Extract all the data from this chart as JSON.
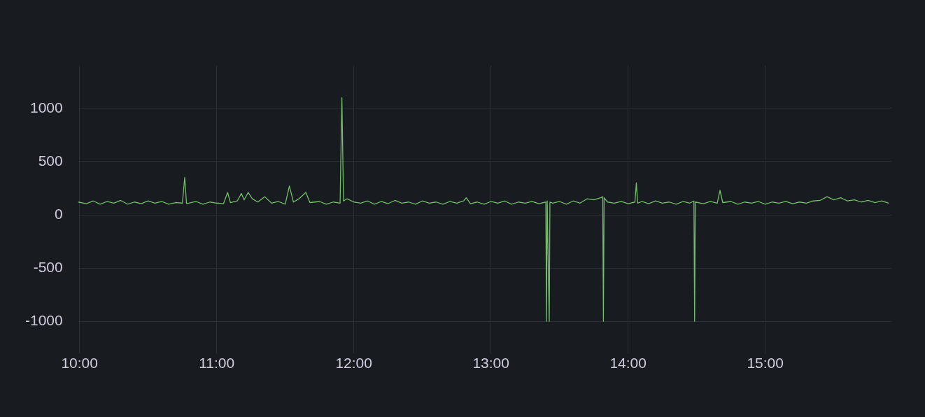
{
  "chart_data": {
    "type": "line",
    "xlim": [
      9.99,
      15.92
    ],
    "ylim": [
      -1300,
      1400
    ],
    "xticks": [
      {
        "value": 10,
        "label": "10:00"
      },
      {
        "value": 11,
        "label": "11:00"
      },
      {
        "value": 12,
        "label": "12:00"
      },
      {
        "value": 13,
        "label": "13:00"
      },
      {
        "value": 14,
        "label": "14:00"
      },
      {
        "value": 15,
        "label": "15:00"
      }
    ],
    "yticks": [
      -1000,
      -500,
      0,
      500,
      1000
    ],
    "grid": true,
    "legend": false,
    "marker": "none",
    "line_style": "solid",
    "series": [
      {
        "color": "#73bf69",
        "x": [
          9.99,
          10.05,
          10.1,
          10.15,
          10.2,
          10.25,
          10.3,
          10.35,
          10.4,
          10.45,
          10.5,
          10.55,
          10.6,
          10.65,
          10.7,
          10.75,
          10.767,
          10.78,
          10.85,
          10.9,
          10.95,
          11.0,
          11.05,
          11.08,
          11.1,
          11.15,
          11.18,
          11.2,
          11.23,
          11.26,
          11.3,
          11.35,
          11.4,
          11.45,
          11.5,
          11.53,
          11.56,
          11.6,
          11.65,
          11.68,
          11.75,
          11.8,
          11.85,
          11.9,
          11.913,
          11.925,
          11.95,
          12.0,
          12.05,
          12.1,
          12.15,
          12.2,
          12.25,
          12.3,
          12.35,
          12.4,
          12.45,
          12.5,
          12.55,
          12.6,
          12.65,
          12.7,
          12.75,
          12.8,
          12.82,
          12.85,
          12.9,
          12.95,
          13.0,
          13.05,
          13.1,
          13.15,
          13.2,
          13.25,
          13.3,
          13.35,
          13.4,
          13.405,
          13.41,
          13.425,
          13.43,
          13.45,
          13.5,
          13.55,
          13.6,
          13.65,
          13.7,
          13.75,
          13.8,
          13.815,
          13.82,
          13.825,
          13.85,
          13.9,
          13.95,
          14.0,
          14.05,
          14.06,
          14.07,
          14.1,
          14.15,
          14.2,
          14.25,
          14.3,
          14.35,
          14.4,
          14.45,
          14.48,
          14.485,
          14.49,
          14.55,
          14.6,
          14.65,
          14.67,
          14.69,
          14.75,
          14.8,
          14.85,
          14.9,
          14.95,
          15.0,
          15.05,
          15.1,
          15.15,
          15.2,
          15.25,
          15.3,
          15.35,
          15.4,
          15.45,
          15.5,
          15.55,
          15.6,
          15.65,
          15.7,
          15.75,
          15.8,
          15.85,
          15.9
        ],
        "values": [
          120,
          105,
          130,
          100,
          125,
          110,
          135,
          100,
          120,
          105,
          130,
          110,
          125,
          100,
          115,
          110,
          350,
          105,
          125,
          100,
          120,
          110,
          105,
          210,
          115,
          130,
          200,
          140,
          210,
          150,
          120,
          170,
          110,
          125,
          100,
          270,
          120,
          150,
          210,
          115,
          125,
          100,
          120,
          110,
          1100,
          130,
          150,
          120,
          110,
          130,
          100,
          125,
          105,
          135,
          110,
          120,
          100,
          130,
          110,
          120,
          100,
          125,
          110,
          130,
          160,
          105,
          120,
          100,
          125,
          110,
          130,
          100,
          120,
          110,
          125,
          105,
          120,
          -1000,
          130,
          -1000,
          120,
          110,
          125,
          100,
          130,
          110,
          150,
          140,
          160,
          170,
          -1000,
          160,
          120,
          110,
          125,
          105,
          120,
          300,
          110,
          125,
          105,
          130,
          110,
          120,
          100,
          125,
          110,
          130,
          -1000,
          120,
          105,
          125,
          110,
          230,
          115,
          125,
          100,
          120,
          110,
          125,
          100,
          120,
          110,
          125,
          105,
          120,
          110,
          130,
          135,
          170,
          140,
          160,
          130,
          140,
          120,
          135,
          115,
          130,
          110
        ]
      }
    ]
  }
}
